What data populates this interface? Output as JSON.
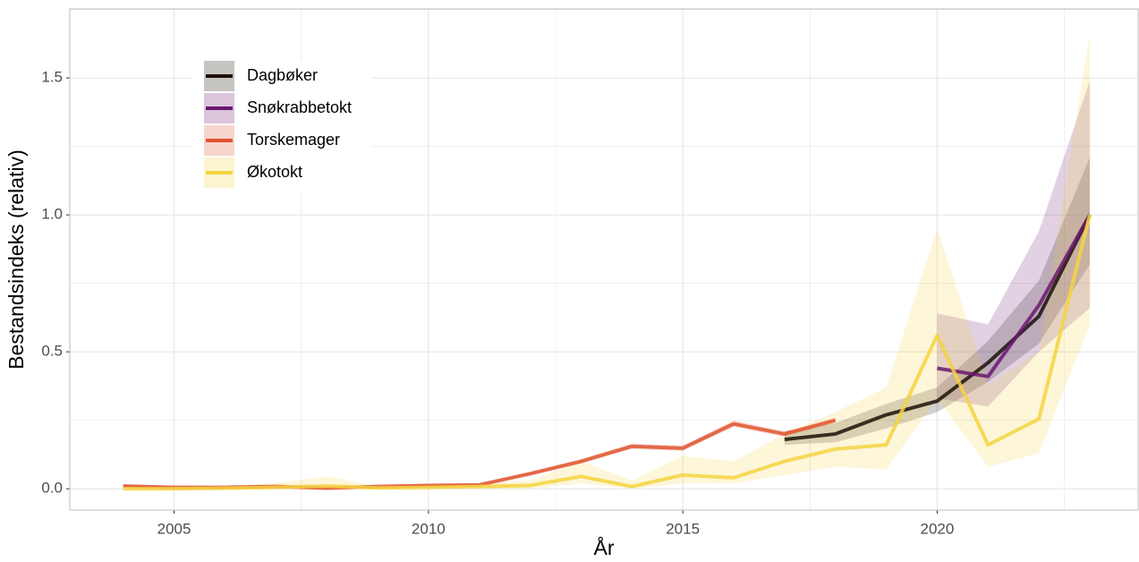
{
  "chart_data": {
    "type": "line",
    "x_label": "År",
    "y_label": "Bestandsindeks (relativ)",
    "xlim": [
      2002.95,
      2023.95
    ],
    "ylim": [
      -0.078,
      1.752
    ],
    "xticks": [
      2005,
      2010,
      2015,
      2020
    ],
    "yticks": [
      {
        "value": 0,
        "label": "0.0"
      },
      {
        "value": 0.5,
        "label": "0.5"
      },
      {
        "value": 1,
        "label": "1.0"
      },
      {
        "value": 1.5,
        "label": "1.5"
      }
    ],
    "grid": true,
    "legend": "top-left",
    "series": [
      {
        "name": "Dagbøker",
        "color": "#1b1209",
        "x": [
          2017,
          2018,
          2019,
          2020,
          2021,
          2022,
          2023
        ],
        "values": [
          0.18,
          0.2,
          0.27,
          0.32,
          0.46,
          0.63,
          1.0
        ],
        "lower": [
          0.16,
          0.17,
          0.22,
          0.28,
          0.39,
          0.53,
          0.82
        ],
        "upper": [
          0.21,
          0.24,
          0.31,
          0.37,
          0.54,
          0.76,
          1.21
        ]
      },
      {
        "name": "Snøkrabbetokt",
        "color": "#6a176e",
        "x": [
          2020,
          2021,
          2022,
          2023
        ],
        "values": [
          0.44,
          0.41,
          0.67,
          1.0
        ],
        "lower": [
          0.33,
          0.3,
          0.5,
          0.66
        ],
        "upper": [
          0.64,
          0.6,
          0.94,
          1.49
        ]
      },
      {
        "name": "Torskemager",
        "color": "#e0532f",
        "x": [
          2004,
          2005,
          2006,
          2007,
          2008,
          2009,
          2010,
          2011,
          2012,
          2013,
          2014,
          2015,
          2016,
          2017,
          2018
        ],
        "values": [
          0.01,
          0.005,
          0.005,
          0.008,
          0.002,
          0.008,
          0.012,
          0.014,
          0.055,
          0.1,
          0.155,
          0.148,
          0.237,
          0.2,
          0.25
        ],
        "lower": [
          0.005,
          0.002,
          0.002,
          0.004,
          0,
          0.004,
          0.008,
          0.01,
          0.048,
          0.092,
          0.145,
          0.138,
          0.225,
          0.19,
          0.24
        ],
        "upper": [
          0.015,
          0.008,
          0.008,
          0.012,
          0.005,
          0.012,
          0.016,
          0.018,
          0.062,
          0.108,
          0.165,
          0.158,
          0.249,
          0.21,
          0.26
        ]
      },
      {
        "name": "Økotokt",
        "color": "#f5d33f",
        "x": [
          2004,
          2005,
          2006,
          2007,
          2008,
          2009,
          2010,
          2011,
          2012,
          2013,
          2014,
          2015,
          2016,
          2017,
          2018,
          2019,
          2020,
          2021,
          2022,
          2023
        ],
        "values": [
          0,
          0,
          0.002,
          0.005,
          0.01,
          0.003,
          0.005,
          0.008,
          0.012,
          0.045,
          0.008,
          0.05,
          0.04,
          0.1,
          0.145,
          0.16,
          0.56,
          0.16,
          0.255,
          1.0
        ],
        "lower": [
          0,
          0,
          0,
          0,
          0,
          0,
          0,
          0,
          0,
          0.02,
          0,
          0.02,
          0.02,
          0.05,
          0.08,
          0.07,
          0.33,
          0.08,
          0.13,
          0.6
        ],
        "upper": [
          0.005,
          0.005,
          0.01,
          0.02,
          0.045,
          0.01,
          0.015,
          0.02,
          0.03,
          0.1,
          0.03,
          0.12,
          0.1,
          0.2,
          0.28,
          0.37,
          0.95,
          0.38,
          0.5,
          1.66
        ]
      }
    ]
  }
}
